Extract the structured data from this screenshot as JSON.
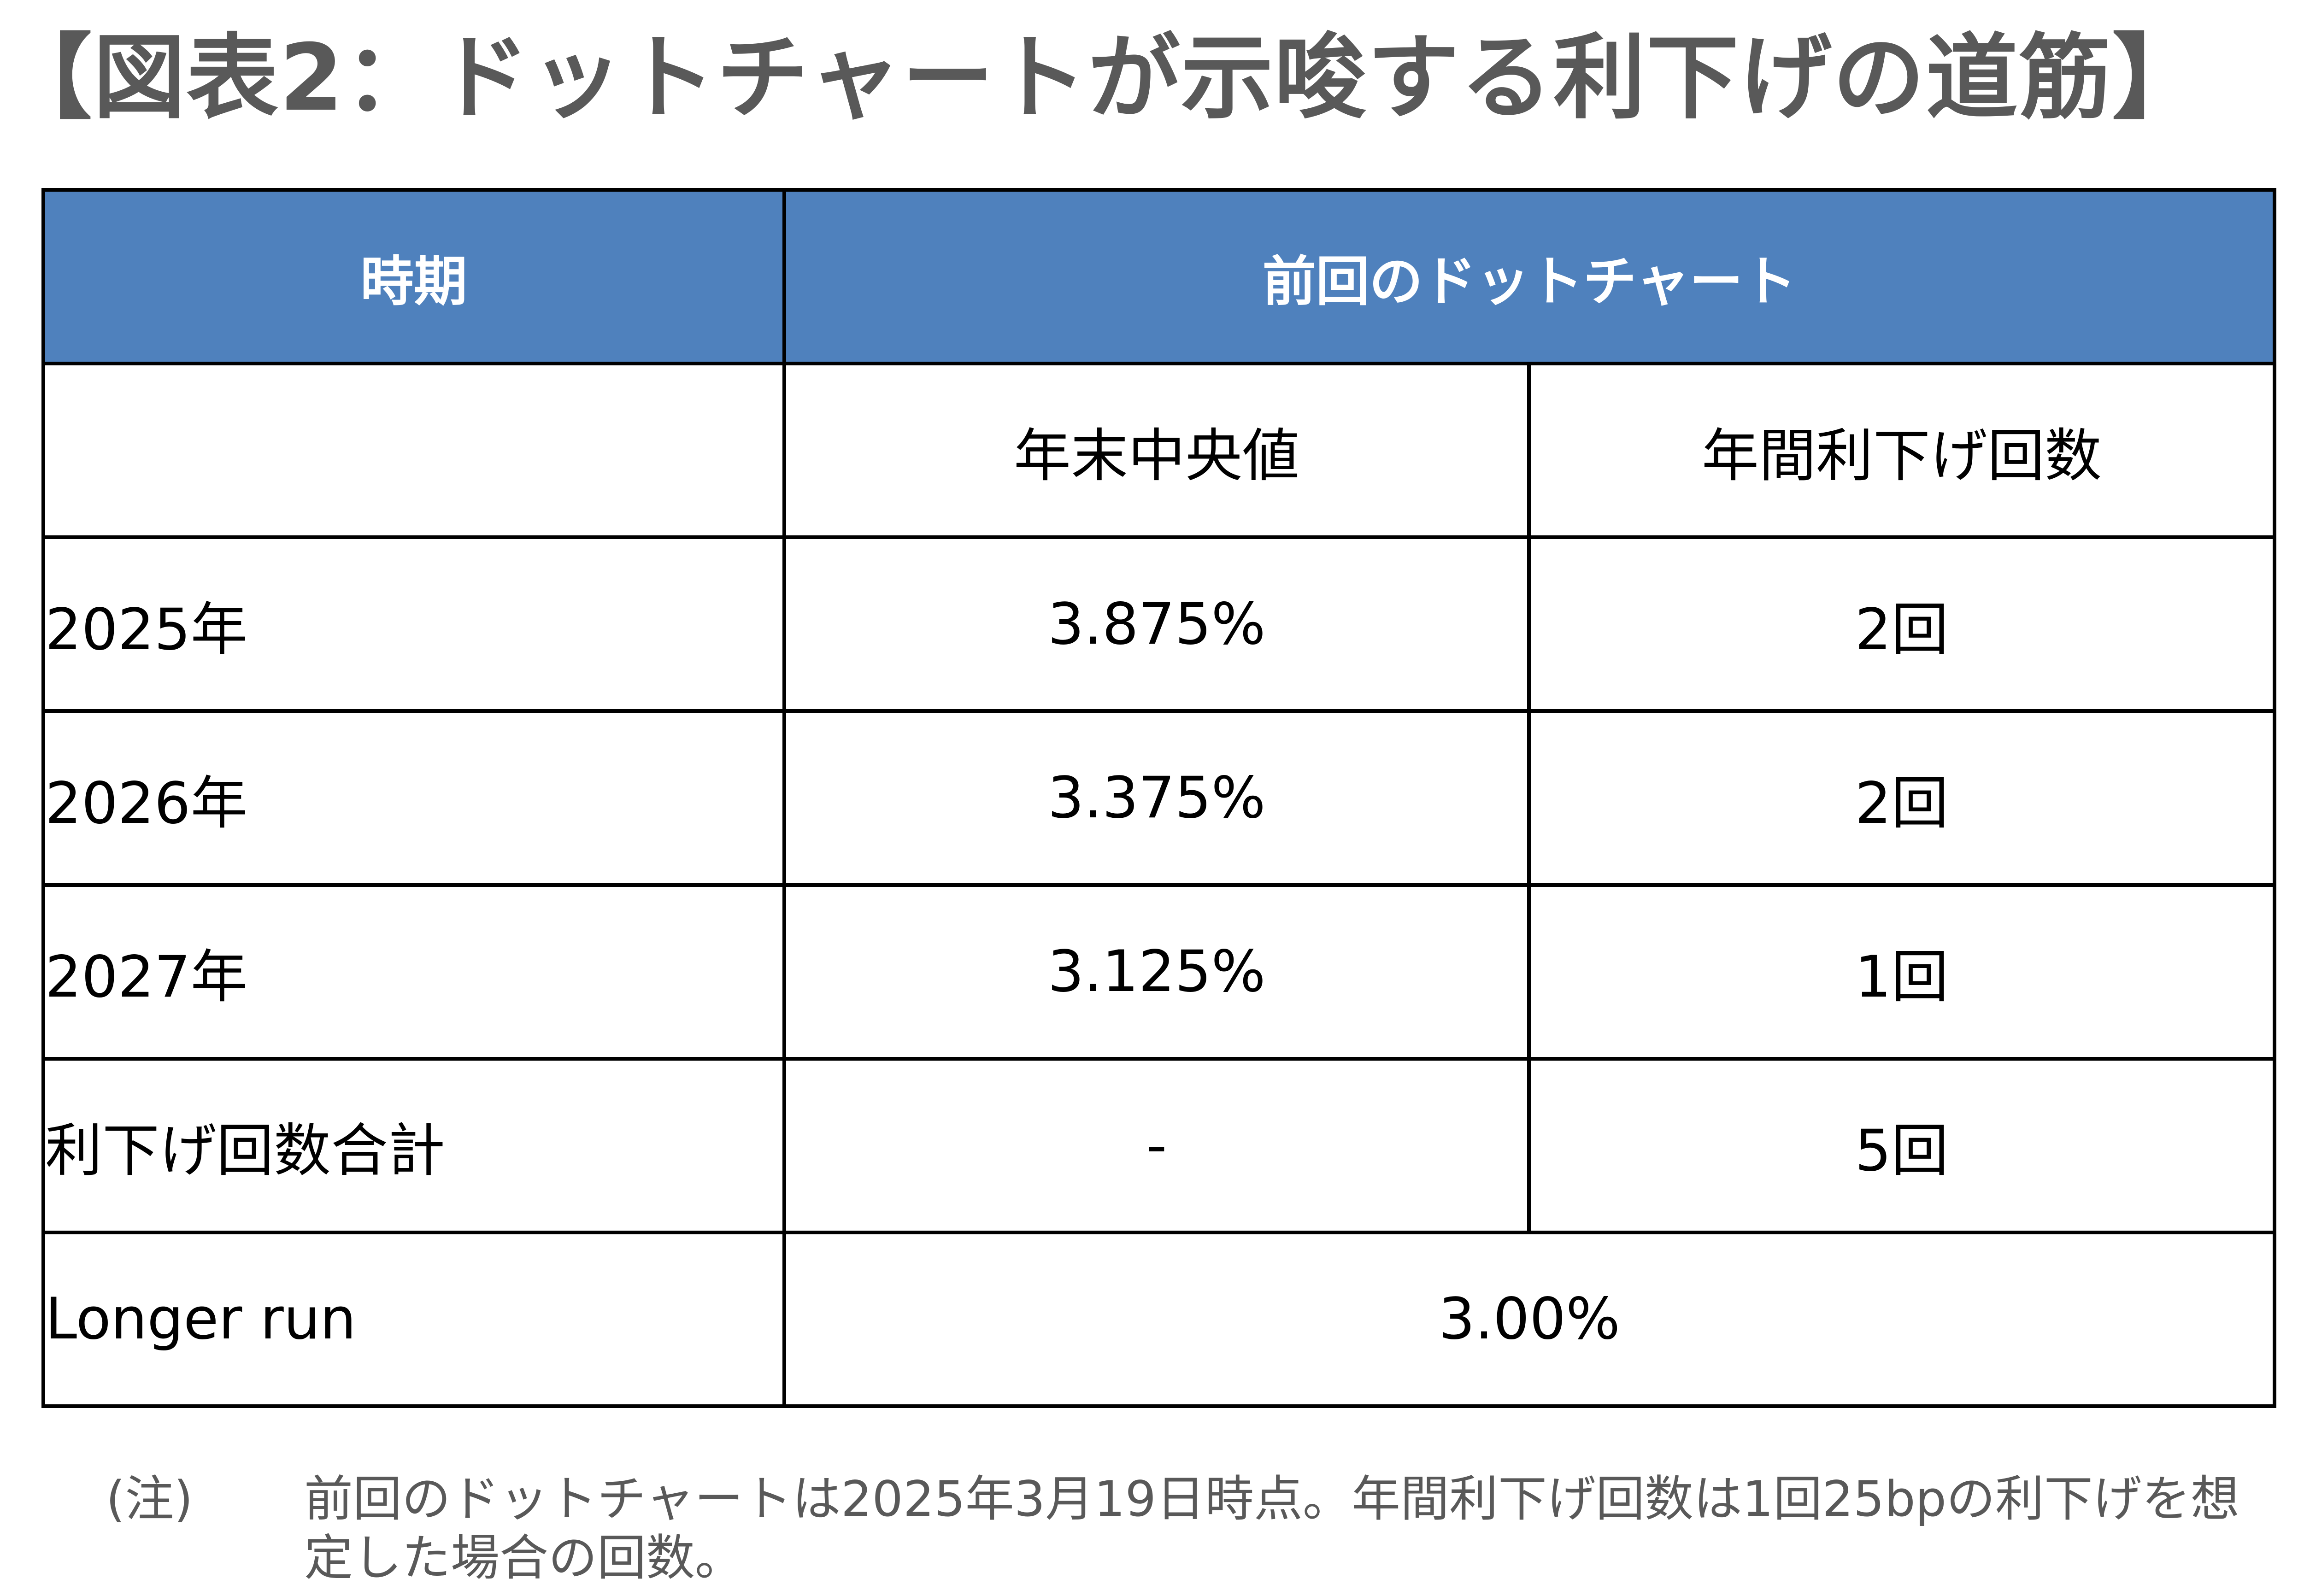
{
  "title": "【図表2：ドットチャートが示唆する利下げの道筋】",
  "table": {
    "header": {
      "period": "時期",
      "dot_chart": "前回のドットチャート"
    },
    "subheader": {
      "period": "",
      "median": "年末中央値",
      "annual_cuts": "年間利下げ回数"
    },
    "rows": [
      {
        "period": "2025年",
        "median": "3.875%",
        "cuts": "2回"
      },
      {
        "period": "2026年",
        "median": "3.375%",
        "cuts": "2回"
      },
      {
        "period": "2027年",
        "median": "3.125%",
        "cuts": "1回"
      },
      {
        "period": "利下げ回数合計",
        "median": "-",
        "cuts": "5回"
      }
    ],
    "longer_run": {
      "period": "Longer run",
      "value": "3.00%"
    }
  },
  "note": {
    "label": "(注)",
    "text": "前回のドットチャートは2025年3月19日時点。年間利下げ回数は1回25bpの利下げを想定した場合の回数。"
  },
  "colors": {
    "header_bg": "#4f81bd",
    "header_text": "#ffffff",
    "title_text": "#595959",
    "border": "#000000"
  }
}
